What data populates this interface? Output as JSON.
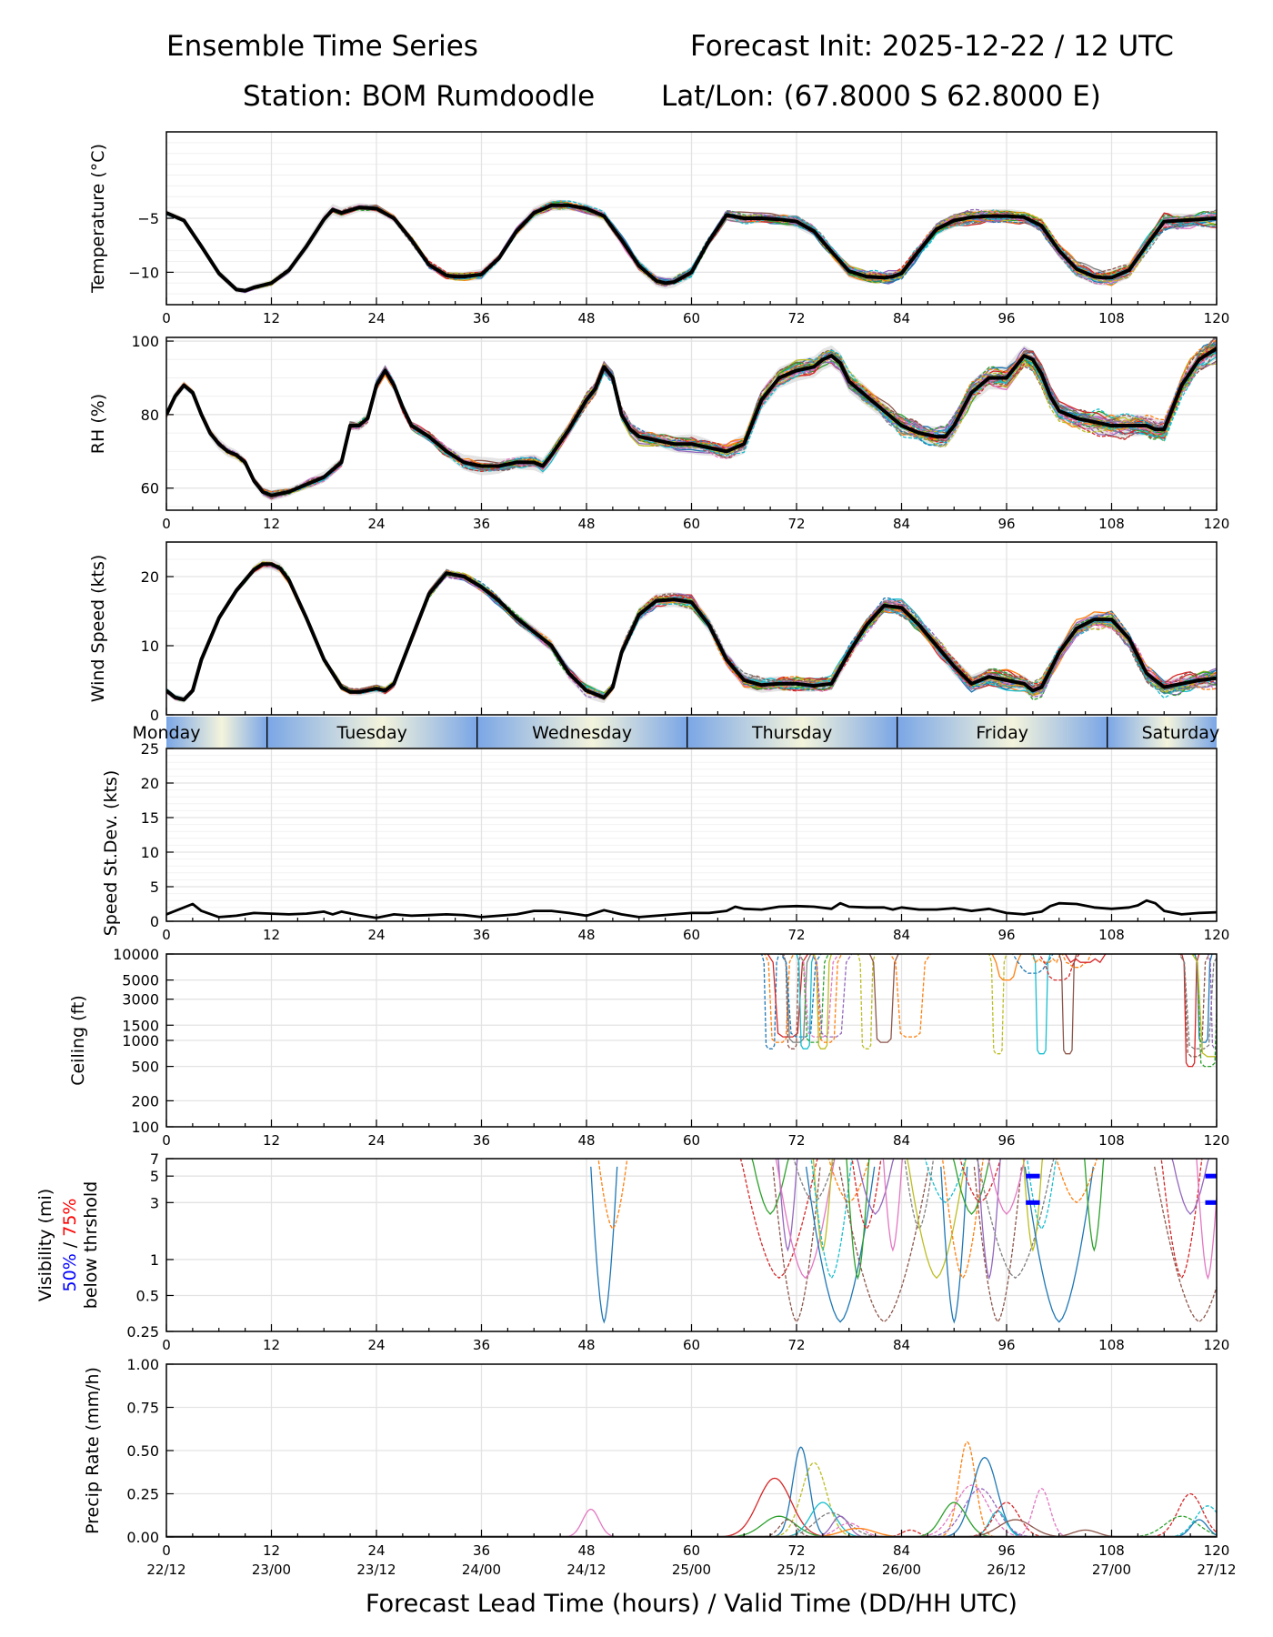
{
  "header": {
    "title_left": "Ensemble Time Series",
    "title_right": "Forecast Init: 2025-12-22 / 12 UTC",
    "station": "Station: BOM Rumdoodle",
    "latlon": "Lat/Lon: (67.8000 S 62.8000 E)"
  },
  "colors": {
    "members": [
      "#1f77b4",
      "#ff7f0e",
      "#2ca02c",
      "#d62728",
      "#9467bd",
      "#8c564b",
      "#e377c2",
      "#7f7f7f",
      "#bcbd22",
      "#17becf"
    ],
    "mean": "#000000",
    "spread": "#d9d9d9",
    "grid": "#e3e3e3",
    "threshold_50": "#0000ff",
    "threshold_75": "#ff0000",
    "day_blue": "#7aa6e6",
    "day_cream": "#f4f4dc"
  },
  "chart_data": [
    {
      "id": "temperature",
      "type": "line",
      "ylabel": "Temperature (°C)",
      "xlim": [
        0,
        120
      ],
      "ylim": [
        -13,
        3
      ],
      "yticks": [
        -10,
        -5
      ],
      "ytick_labels": [
        "−10",
        "−5"
      ],
      "x_ticks": [
        0,
        12,
        24,
        36,
        48,
        60,
        72,
        84,
        96,
        108,
        120
      ],
      "ensemble_mean": {
        "x": [
          0,
          2,
          4,
          6,
          8,
          9,
          10,
          12,
          14,
          16,
          18,
          19,
          20,
          22,
          24,
          26,
          28,
          30,
          32,
          33,
          34,
          36,
          38,
          40,
          42,
          44,
          46,
          48,
          50,
          52,
          54,
          56,
          57,
          58,
          60,
          62,
          64,
          66,
          68,
          70,
          72,
          74,
          76,
          78,
          80,
          82,
          83,
          84,
          86,
          88,
          90,
          92,
          94,
          96,
          98,
          100,
          102,
          104,
          106,
          107,
          108,
          110,
          112,
          114,
          116,
          118,
          120
        ],
        "y": [
          -4.5,
          -5.2,
          -7.6,
          -10.1,
          -11.6,
          -11.7,
          -11.4,
          -11.0,
          -9.8,
          -7.6,
          -5.1,
          -4.2,
          -4.5,
          -4.0,
          -4.1,
          -5.0,
          -7.0,
          -9.3,
          -10.3,
          -10.4,
          -10.4,
          -10.2,
          -8.7,
          -6.2,
          -4.5,
          -3.8,
          -3.8,
          -4.1,
          -4.8,
          -7.0,
          -9.4,
          -10.8,
          -11.0,
          -10.9,
          -10.0,
          -7.1,
          -4.7,
          -5.0,
          -5.0,
          -5.1,
          -5.3,
          -6.2,
          -8.1,
          -9.9,
          -10.4,
          -10.5,
          -10.4,
          -10.1,
          -8.0,
          -6.0,
          -5.2,
          -4.9,
          -4.8,
          -4.8,
          -4.9,
          -5.7,
          -8.0,
          -9.7,
          -10.4,
          -10.5,
          -10.5,
          -9.8,
          -7.5,
          -5.3,
          -5.2,
          -5.1,
          -5.0
        ]
      }
    },
    {
      "id": "rh",
      "type": "line",
      "ylabel": "RH (%)",
      "xlim": [
        0,
        120
      ],
      "ylim": [
        54,
        101
      ],
      "yticks": [
        60,
        80,
        100
      ],
      "x_ticks": [
        0,
        12,
        24,
        36,
        48,
        60,
        72,
        84,
        96,
        108,
        120
      ],
      "ensemble_mean": {
        "x": [
          0,
          1,
          2,
          3,
          4,
          5,
          6,
          7,
          8,
          9,
          10,
          11,
          12,
          14,
          16,
          18,
          19,
          20,
          21,
          22,
          23,
          24,
          25,
          26,
          27,
          28,
          30,
          32,
          34,
          36,
          38,
          40,
          42,
          43,
          44,
          46,
          48,
          49,
          50,
          51,
          52,
          53,
          54,
          56,
          58,
          60,
          62,
          64,
          66,
          68,
          70,
          72,
          74,
          75,
          76,
          77,
          78,
          80,
          82,
          84,
          86,
          88,
          89,
          90,
          92,
          94,
          96,
          97,
          98,
          99,
          100,
          101,
          102,
          104,
          106,
          108,
          110,
          112,
          113,
          114,
          116,
          118,
          120
        ],
        "y": [
          80,
          85,
          88,
          86,
          80,
          75,
          72,
          70,
          69,
          67,
          62,
          59,
          58,
          59,
          61,
          63,
          65,
          67,
          77,
          77,
          79,
          88,
          92,
          88,
          82,
          77,
          74,
          70,
          67,
          66,
          66,
          67,
          67,
          66,
          69,
          76,
          84,
          87,
          93,
          90,
          80,
          76,
          74,
          73,
          72,
          72,
          71,
          70,
          72,
          84,
          90,
          92,
          93,
          95,
          96,
          94,
          89,
          85,
          81,
          77,
          75,
          74,
          74,
          77,
          86,
          90,
          90,
          93,
          96,
          95,
          91,
          85,
          81,
          79,
          78,
          77,
          77,
          77,
          76,
          76,
          88,
          95,
          98
        ]
      }
    },
    {
      "id": "wind_speed",
      "type": "line",
      "ylabel": "Wind Speed (kts)",
      "xlim": [
        0,
        120
      ],
      "ylim": [
        0,
        25
      ],
      "yticks": [
        0,
        10,
        20
      ],
      "x_ticks": [
        0,
        12,
        24,
        36,
        48,
        60,
        72,
        84,
        96,
        108,
        120
      ],
      "ensemble_mean": {
        "x": [
          0,
          1,
          2,
          3,
          4,
          6,
          8,
          10,
          11,
          12,
          13,
          14,
          16,
          18,
          20,
          21,
          22,
          24,
          25,
          26,
          28,
          30,
          32,
          34,
          36,
          38,
          40,
          42,
          44,
          46,
          48,
          50,
          51,
          52,
          54,
          56,
          58,
          60,
          62,
          64,
          66,
          68,
          70,
          72,
          74,
          76,
          78,
          80,
          82,
          84,
          86,
          88,
          90,
          92,
          94,
          96,
          98,
          99,
          100,
          102,
          104,
          106,
          108,
          110,
          112,
          114,
          116,
          118,
          120
        ],
        "y": [
          3.5,
          2.5,
          2.2,
          3.5,
          8,
          14,
          18,
          21,
          21.8,
          21.8,
          21.2,
          19.5,
          14,
          8,
          4,
          3.3,
          3.3,
          3.8,
          3.5,
          4.5,
          11,
          17.5,
          20.5,
          20,
          18.5,
          16.5,
          14,
          12,
          10,
          6,
          3.5,
          2.5,
          4,
          9,
          14.5,
          16.5,
          16.7,
          16.3,
          13,
          8,
          5,
          4.3,
          4.5,
          4.5,
          4.2,
          4.5,
          9,
          13,
          15.8,
          15.5,
          13,
          10,
          7,
          4.5,
          5.5,
          5,
          4.5,
          3.5,
          4,
          9,
          12.5,
          13.8,
          13.8,
          11,
          6,
          4,
          4.5,
          5,
          5.3
        ]
      }
    },
    {
      "id": "speed_stdev",
      "type": "line",
      "ylabel": "Speed St.Dev. (kts)",
      "xlim": [
        0,
        120
      ],
      "ylim": [
        0,
        25
      ],
      "yticks": [
        0,
        5,
        10,
        15,
        20,
        25
      ],
      "x_ticks": [
        0,
        12,
        24,
        36,
        48,
        60,
        72,
        84,
        96,
        108,
        120
      ],
      "day_labels": [
        "Monday",
        "Tuesday",
        "Wednesday",
        "Thursday",
        "Friday",
        "Saturday"
      ],
      "series": [
        {
          "name": "wind speed std dev",
          "x": [
            0,
            2,
            3,
            4,
            6,
            8,
            10,
            12,
            14,
            16,
            18,
            19,
            20,
            22,
            24,
            26,
            28,
            30,
            32,
            34,
            36,
            38,
            40,
            42,
            44,
            46,
            48,
            50,
            52,
            54,
            56,
            58,
            60,
            62,
            64,
            65,
            66,
            68,
            70,
            72,
            74,
            76,
            77,
            78,
            80,
            82,
            83,
            84,
            86,
            88,
            90,
            92,
            94,
            96,
            98,
            100,
            101,
            102,
            104,
            106,
            108,
            110,
            111,
            112,
            113,
            114,
            116,
            118,
            120
          ],
          "y": [
            1.0,
            2.0,
            2.5,
            1.5,
            0.6,
            0.8,
            1.2,
            1.1,
            1.0,
            1.1,
            1.4,
            1.0,
            1.4,
            0.9,
            0.5,
            1.0,
            0.8,
            0.9,
            1.0,
            0.9,
            0.6,
            0.8,
            1.0,
            1.5,
            1.5,
            1.2,
            0.8,
            1.6,
            1.0,
            0.6,
            0.8,
            1.0,
            1.2,
            1.2,
            1.5,
            2.1,
            1.8,
            1.7,
            2.1,
            2.2,
            2.1,
            1.8,
            2.6,
            2.1,
            2.0,
            2.0,
            1.7,
            2.0,
            1.7,
            1.7,
            1.9,
            1.5,
            1.8,
            1.2,
            1.0,
            1.4,
            2.2,
            2.6,
            2.5,
            2.0,
            1.8,
            2.0,
            2.3,
            3.0,
            2.6,
            1.5,
            1.0,
            1.2,
            1.3
          ]
        }
      ]
    },
    {
      "id": "ceiling",
      "type": "line",
      "ylabel": "Ceiling (ft)",
      "yscale": "log",
      "xlim": [
        0,
        120
      ],
      "ylim": [
        100,
        10000
      ],
      "yticks": [
        100,
        200,
        500,
        1000,
        1500,
        3000,
        5000,
        10000
      ],
      "x_ticks": [
        0,
        12,
        24,
        36,
        48,
        60,
        72,
        84,
        96,
        108,
        120
      ],
      "note": "ensemble members only; no data below ~70 h"
    },
    {
      "id": "visibility",
      "type": "line",
      "ylabel": "Visibility (mi)",
      "threshold_labels": [
        "50%",
        "/",
        "75%",
        "below thrshold"
      ],
      "yscale": "log",
      "xlim": [
        0,
        120
      ],
      "ylim": [
        0.25,
        7
      ],
      "yticks": [
        0.25,
        0.5,
        1,
        3,
        5,
        7
      ],
      "x_ticks": [
        0,
        12,
        24,
        36,
        48,
        60,
        72,
        84,
        96,
        108,
        120
      ],
      "note": "ensemble members only; blue marks at 3 and 5 mi near 99 h and 119 h"
    },
    {
      "id": "precip_rate",
      "type": "line",
      "ylabel": "Precip Rate (mm/h)",
      "xlim": [
        0,
        120
      ],
      "ylim": [
        0,
        1
      ],
      "yticks": [
        0.0,
        0.25,
        0.5,
        0.75,
        1.0
      ],
      "ytick_labels": [
        "0.00",
        "0.25",
        "0.50",
        "0.75",
        "1.00"
      ],
      "x_ticks": [
        0,
        12,
        24,
        36,
        48,
        60,
        72,
        84,
        96,
        108,
        120
      ],
      "x_valid_labels": [
        "22/12",
        "23/00",
        "23/12",
        "24/00",
        "24/12",
        "25/00",
        "25/12",
        "26/00",
        "26/12",
        "27/00",
        "27/12"
      ],
      "xlabel": "Forecast Lead Time (hours) / Valid Time (DD/HH UTC)",
      "peaks": [
        {
          "member": 0,
          "x": 72.5,
          "y": 0.52
        },
        {
          "member": 8,
          "x": 74.0,
          "y": 0.43
        },
        {
          "member": 3,
          "x": 69.5,
          "y": 0.34
        },
        {
          "member": 1,
          "x": 91.5,
          "y": 0.55
        },
        {
          "member": 0,
          "x": 93.5,
          "y": 0.46
        },
        {
          "member": 4,
          "x": 93.0,
          "y": 0.28
        },
        {
          "member": 6,
          "x": 48.5,
          "y": 0.16
        },
        {
          "member": 3,
          "x": 117.0,
          "y": 0.25
        }
      ]
    }
  ]
}
